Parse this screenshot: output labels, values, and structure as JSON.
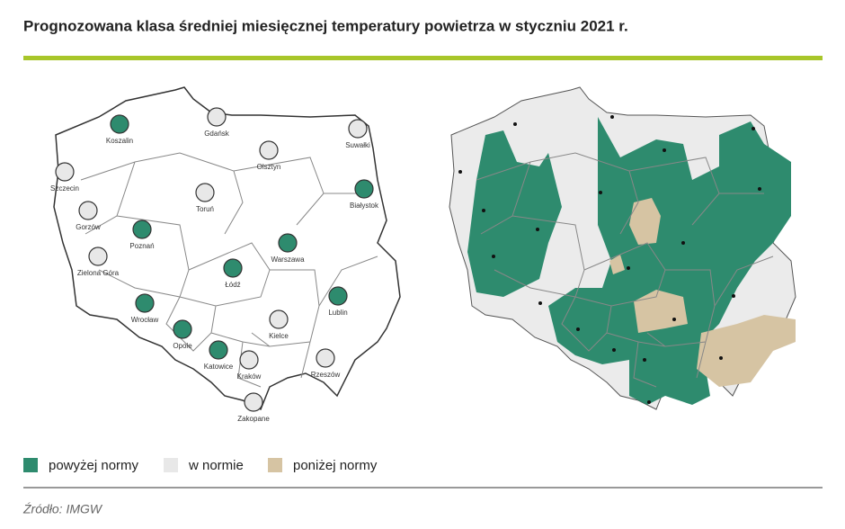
{
  "header": {
    "title": "Prognozowana klasa średniej miesięcznej temperatury powietrza w styczniu 2021 r."
  },
  "legend": [
    {
      "label": "powyżej normy",
      "color": "#2e8b6e"
    },
    {
      "label": "w normie",
      "color": "#e8e8e8"
    },
    {
      "label": "poniżej normy",
      "color": "#d6c4a3"
    }
  ],
  "cities": [
    {
      "name": "Koszalin",
      "color": "#2e8b6e"
    },
    {
      "name": "Gdańsk",
      "color": "#e8e8e8"
    },
    {
      "name": "Suwałki",
      "color": "#e8e8e8"
    },
    {
      "name": "Olsztyn",
      "color": "#e8e8e8"
    },
    {
      "name": "Szczecin",
      "color": "#e8e8e8"
    },
    {
      "name": "Białystok",
      "color": "#2e8b6e"
    },
    {
      "name": "Toruń",
      "color": "#e8e8e8"
    },
    {
      "name": "Gorzów",
      "color": "#e8e8e8"
    },
    {
      "name": "Poznań",
      "color": "#2e8b6e"
    },
    {
      "name": "Warszawa",
      "color": "#2e8b6e"
    },
    {
      "name": "Zielona Góra",
      "color": "#e8e8e8"
    },
    {
      "name": "Łódź",
      "color": "#2e8b6e"
    },
    {
      "name": "Lublin",
      "color": "#2e8b6e"
    },
    {
      "name": "Wrocław",
      "color": "#2e8b6e"
    },
    {
      "name": "Kielce",
      "color": "#e8e8e8"
    },
    {
      "name": "Opole",
      "color": "#2e8b6e"
    },
    {
      "name": "Katowice",
      "color": "#2e8b6e"
    },
    {
      "name": "Kraków",
      "color": "#e8e8e8"
    },
    {
      "name": "Rzeszów",
      "color": "#e8e8e8"
    },
    {
      "name": "Zakopane",
      "color": "#e8e8e8"
    }
  ],
  "source": "Źródło: IMGW"
}
